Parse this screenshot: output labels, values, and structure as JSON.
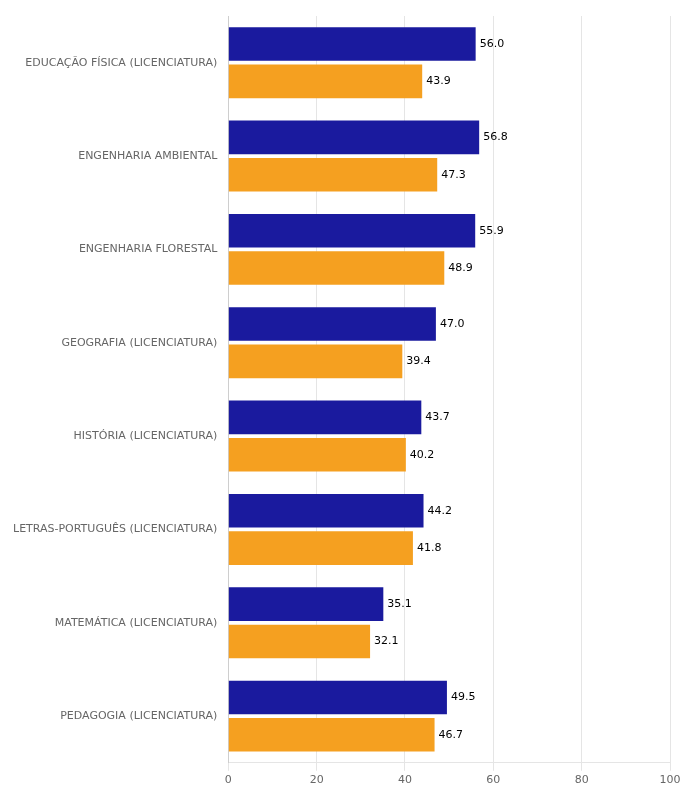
{
  "chart_data": {
    "type": "bar",
    "orientation": "horizontal",
    "categories": [
      "EDUCAÇÃO FÍSICA (LICENCIATURA)",
      "ENGENHARIA AMBIENTAL",
      "ENGENHARIA FLORESTAL",
      "GEOGRAFIA (LICENCIATURA)",
      "HISTÓRIA (LICENCIATURA)",
      "LETRAS-PORTUGUÊS (LICENCIATURA)",
      "MATEMÁTICA (LICENCIATURA)",
      "PEDAGOGIA (LICENCIATURA)"
    ],
    "series": [
      {
        "color": "#1a1a9e",
        "values": [
          56.0,
          56.8,
          55.9,
          47.0,
          43.7,
          44.2,
          35.1,
          49.5
        ],
        "value_labels": [
          "56.0",
          "56.8",
          "55.9",
          "47.0",
          "43.7",
          "44.2",
          "35.1",
          "49.5"
        ]
      },
      {
        "color": "#f5a020",
        "values": [
          43.9,
          47.3,
          48.9,
          39.4,
          40.2,
          41.8,
          32.1,
          46.7
        ],
        "value_labels": [
          "43.9",
          "47.3",
          "48.9",
          "39.4",
          "40.2",
          "41.8",
          "32.1",
          "46.7"
        ]
      }
    ],
    "xlim": [
      0,
      100
    ],
    "xticks": [
      0,
      20,
      40,
      60,
      80,
      100
    ],
    "grid": true,
    "data_labels": true
  }
}
